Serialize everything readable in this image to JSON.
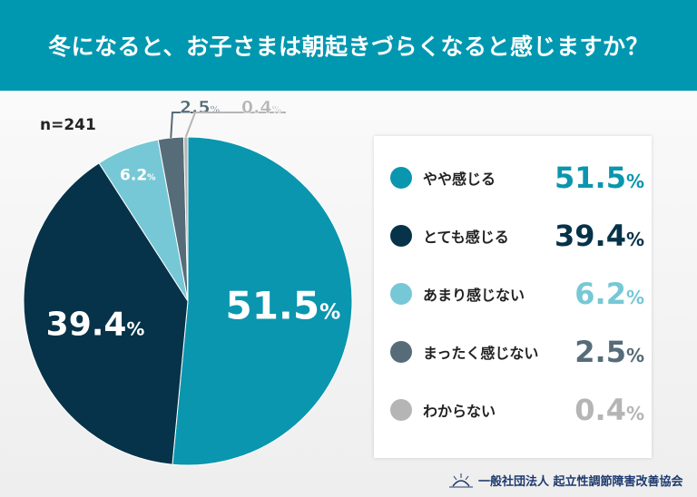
{
  "title": "冬になると、お子さまは朝起きづらくなると感じますか？",
  "sample": "n=241",
  "footer": "一般社団法人 起立性調節障害改善協会",
  "chart_data": {
    "type": "pie",
    "title": "冬になると、お子さまは朝起きづらくなると感じますか？",
    "unit": "%",
    "slices": [
      {
        "label": "やや感じる",
        "value": 51.5,
        "color": "#0a96ae"
      },
      {
        "label": "とても感じる",
        "value": 39.4,
        "color": "#063349"
      },
      {
        "label": "あまり感じない",
        "value": 6.2,
        "color": "#76c8d6"
      },
      {
        "label": "まったく感じない",
        "value": 2.5,
        "color": "#566c78"
      },
      {
        "label": "わからない",
        "value": 0.4,
        "color": "#b5b5b5"
      }
    ],
    "legend_placement": "right"
  }
}
